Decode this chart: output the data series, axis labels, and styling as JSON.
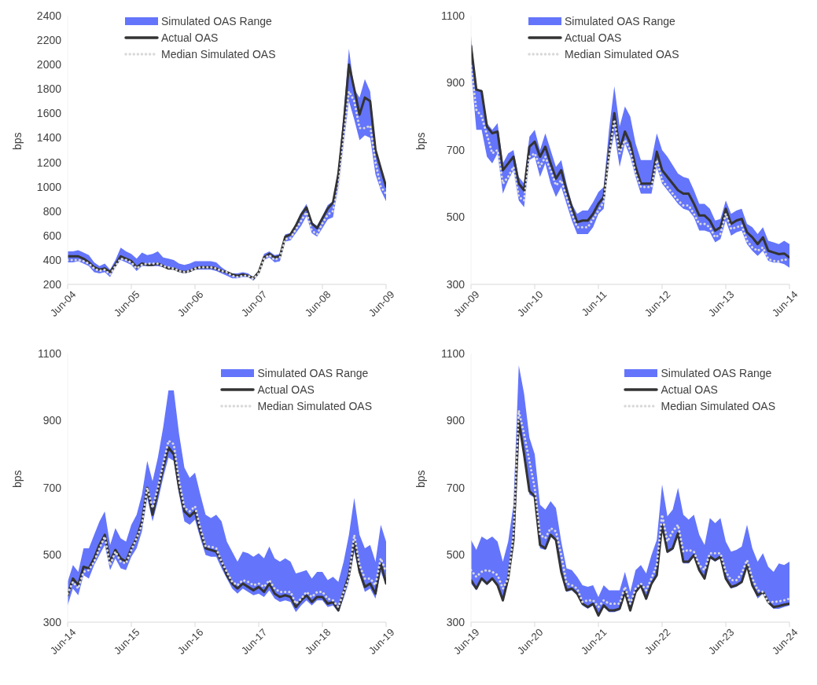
{
  "chart_data": [
    {
      "type": "line",
      "ylabel": "bps",
      "legend": "top",
      "annotations": [
        "Simulated OAS Range"
      ],
      "x": [
        "2004-06",
        "2004-07",
        "2004-08",
        "2004-09",
        "2004-10",
        "2004-11",
        "2004-12",
        "2005-01",
        "2005-02",
        "2005-03",
        "2005-04",
        "2005-05",
        "2005-06",
        "2005-07",
        "2005-08",
        "2005-09",
        "2005-10",
        "2005-11",
        "2005-12",
        "2006-01",
        "2006-02",
        "2006-03",
        "2006-04",
        "2006-05",
        "2006-06",
        "2006-07",
        "2006-08",
        "2006-09",
        "2006-10",
        "2006-11",
        "2006-12",
        "2007-01",
        "2007-02",
        "2007-03",
        "2007-04",
        "2007-05",
        "2007-06",
        "2007-07",
        "2007-08",
        "2007-09",
        "2007-10",
        "2007-11",
        "2007-12",
        "2008-01",
        "2008-02",
        "2008-03",
        "2008-04",
        "2008-05",
        "2008-06",
        "2008-07",
        "2008-08",
        "2008-09",
        "2008-10",
        "2008-11",
        "2008-12",
        "2009-01",
        "2009-02",
        "2009-03",
        "2009-04",
        "2009-05",
        "2009-06"
      ],
      "xlim": [
        "2004-06",
        "2009-06"
      ],
      "xticks": [
        {
          "value": "2004-06",
          "label": "Jun-04"
        },
        {
          "value": "2005-06",
          "label": "Jun-05"
        },
        {
          "value": "2006-06",
          "label": "Jun-06"
        },
        {
          "value": "2007-06",
          "label": "Jun-07"
        },
        {
          "value": "2008-06",
          "label": "Jun-08"
        },
        {
          "value": "2009-06",
          "label": "Jun-09"
        }
      ],
      "ylim": [
        200,
        2400
      ],
      "yticks": [
        200,
        400,
        600,
        800,
        1000,
        1200,
        1400,
        1600,
        1800,
        2000,
        2200,
        2400
      ],
      "series": [
        {
          "name": "Actual OAS",
          "color": "#333333",
          "line_style": "solid",
          "values": [
            430,
            430,
            430,
            410,
            380,
            340,
            320,
            330,
            300,
            360,
            430,
            410,
            390,
            340,
            370,
            360,
            360,
            370,
            350,
            330,
            330,
            310,
            300,
            310,
            330,
            340,
            340,
            340,
            330,
            310,
            300,
            280,
            270,
            280,
            270,
            250,
            300,
            420,
            450,
            420,
            430,
            590,
            610,
            680,
            770,
            830,
            700,
            660,
            740,
            820,
            870,
            1100,
            1500,
            2000,
            1800,
            1590,
            1730,
            1700,
            1300,
            1150,
            1000
          ]
        },
        {
          "name": "Median Simulated OAS",
          "color": "#d9d9d9",
          "line_style": "dotted",
          "values": [
            400,
            400,
            400,
            390,
            370,
            330,
            310,
            320,
            280,
            350,
            410,
            400,
            380,
            330,
            360,
            370,
            370,
            370,
            350,
            340,
            330,
            310,
            300,
            310,
            330,
            340,
            340,
            340,
            330,
            310,
            300,
            270,
            260,
            270,
            270,
            245,
            290,
            410,
            440,
            400,
            420,
            570,
            580,
            650,
            720,
            790,
            640,
            610,
            700,
            770,
            800,
            1000,
            1400,
            1780,
            1700,
            1480,
            1480,
            1500,
            1200,
            1000,
            940
          ],
          "lower": [
            380,
            380,
            390,
            370,
            350,
            300,
            290,
            300,
            260,
            340,
            400,
            380,
            360,
            310,
            350,
            350,
            350,
            350,
            340,
            330,
            320,
            300,
            290,
            300,
            320,
            320,
            320,
            320,
            310,
            290,
            270,
            250,
            250,
            260,
            260,
            230,
            280,
            400,
            420,
            380,
            390,
            550,
            560,
            620,
            680,
            760,
            620,
            590,
            660,
            730,
            750,
            1000,
            1350,
            1700,
            1550,
            1380,
            1420,
            1400,
            1100,
            970,
            880
          ],
          "upper": [
            470,
            470,
            480,
            460,
            440,
            380,
            350,
            370,
            320,
            400,
            500,
            470,
            450,
            410,
            460,
            440,
            450,
            470,
            420,
            410,
            400,
            370,
            360,
            370,
            390,
            390,
            390,
            390,
            380,
            340,
            310,
            290,
            290,
            300,
            290,
            260,
            310,
            450,
            470,
            440,
            450,
            610,
            620,
            700,
            790,
            860,
            710,
            680,
            760,
            850,
            880,
            1150,
            1600,
            2130,
            1800,
            1730,
            1880,
            1780,
            1320,
            1150,
            1020
          ]
        }
      ]
    },
    {
      "type": "line",
      "ylabel": "bps",
      "legend": "top",
      "annotations": [
        "Simulated OAS Range"
      ],
      "x": [
        "2009-06",
        "2009-07",
        "2009-08",
        "2009-09",
        "2009-10",
        "2009-11",
        "2009-12",
        "2010-01",
        "2010-02",
        "2010-03",
        "2010-04",
        "2010-05",
        "2010-06",
        "2010-07",
        "2010-08",
        "2010-09",
        "2010-10",
        "2010-11",
        "2010-12",
        "2011-01",
        "2011-02",
        "2011-03",
        "2011-04",
        "2011-05",
        "2011-06",
        "2011-07",
        "2011-08",
        "2011-09",
        "2011-10",
        "2011-11",
        "2011-12",
        "2012-01",
        "2012-02",
        "2012-03",
        "2012-04",
        "2012-05",
        "2012-06",
        "2012-07",
        "2012-08",
        "2012-09",
        "2012-10",
        "2012-11",
        "2012-12",
        "2013-01",
        "2013-02",
        "2013-03",
        "2013-04",
        "2013-05",
        "2013-06",
        "2013-07",
        "2013-08",
        "2013-09",
        "2013-10",
        "2013-11",
        "2013-12",
        "2014-01",
        "2014-02",
        "2014-03",
        "2014-04",
        "2014-05",
        "2014-06"
      ],
      "xlim": [
        "2009-06",
        "2014-06"
      ],
      "xticks": [
        {
          "value": "2009-06",
          "label": "Jun-09"
        },
        {
          "value": "2010-06",
          "label": "Jun-10"
        },
        {
          "value": "2011-06",
          "label": "Jun-11"
        },
        {
          "value": "2012-06",
          "label": "Jun-12"
        },
        {
          "value": "2013-06",
          "label": "Jun-13"
        },
        {
          "value": "2014-06",
          "label": "Jun-14"
        }
      ],
      "ylim": [
        300,
        1100
      ],
      "yticks": [
        300,
        500,
        700,
        900,
        1100
      ],
      "series": [
        {
          "name": "Actual OAS",
          "color": "#333333",
          "line_style": "solid",
          "values": [
            1010,
            880,
            875,
            770,
            750,
            755,
            640,
            660,
            680,
            600,
            580,
            710,
            725,
            680,
            710,
            660,
            615,
            640,
            580,
            530,
            485,
            490,
            490,
            510,
            540,
            560,
            690,
            810,
            700,
            755,
            720,
            650,
            600,
            600,
            600,
            695,
            640,
            620,
            600,
            580,
            570,
            570,
            540,
            505,
            505,
            490,
            460,
            470,
            525,
            480,
            490,
            495,
            455,
            440,
            420,
            440,
            400,
            395,
            390,
            392,
            380
          ]
        },
        {
          "name": "Median Simulated OAS",
          "color": "#d9d9d9",
          "line_style": "dotted",
          "values": [
            950,
            820,
            800,
            745,
            690,
            700,
            600,
            620,
            650,
            560,
            550,
            680,
            690,
            650,
            680,
            640,
            595,
            610,
            560,
            510,
            470,
            470,
            470,
            495,
            520,
            545,
            680,
            790,
            690,
            730,
            700,
            630,
            590,
            590,
            590,
            670,
            610,
            590,
            570,
            550,
            535,
            535,
            510,
            480,
            480,
            470,
            440,
            450,
            510,
            465,
            470,
            475,
            430,
            410,
            400,
            410,
            375,
            370,
            368,
            375,
            370
          ],
          "lower": [
            940,
            760,
            760,
            680,
            660,
            690,
            570,
            610,
            640,
            550,
            530,
            670,
            680,
            620,
            660,
            600,
            560,
            590,
            540,
            490,
            450,
            450,
            450,
            470,
            510,
            525,
            670,
            750,
            650,
            720,
            680,
            620,
            570,
            570,
            570,
            650,
            600,
            580,
            560,
            540,
            525,
            520,
            500,
            460,
            460,
            455,
            425,
            435,
            490,
            445,
            455,
            460,
            420,
            400,
            385,
            400,
            370,
            365,
            365,
            360,
            350
          ],
          "upper": [
            1040,
            880,
            880,
            780,
            760,
            780,
            660,
            690,
            700,
            620,
            600,
            740,
            760,
            700,
            750,
            700,
            650,
            670,
            600,
            540,
            510,
            520,
            520,
            545,
            575,
            590,
            760,
            890,
            770,
            830,
            800,
            720,
            670,
            670,
            670,
            750,
            700,
            680,
            655,
            630,
            620,
            615,
            580,
            540,
            540,
            525,
            490,
            495,
            550,
            510,
            520,
            525,
            480,
            470,
            450,
            470,
            430,
            425,
            420,
            430,
            420
          ]
        }
      ]
    },
    {
      "type": "line",
      "ylabel": "bps",
      "legend": "top right",
      "annotations": [
        "Simulated OAS Range"
      ],
      "x": [
        "2014-06",
        "2014-07",
        "2014-08",
        "2014-09",
        "2014-10",
        "2014-11",
        "2014-12",
        "2015-01",
        "2015-02",
        "2015-03",
        "2015-04",
        "2015-05",
        "2015-06",
        "2015-07",
        "2015-08",
        "2015-09",
        "2015-10",
        "2015-11",
        "2015-12",
        "2016-01",
        "2016-02",
        "2016-03",
        "2016-04",
        "2016-05",
        "2016-06",
        "2016-07",
        "2016-08",
        "2016-09",
        "2016-10",
        "2016-11",
        "2016-12",
        "2017-01",
        "2017-02",
        "2017-03",
        "2017-04",
        "2017-05",
        "2017-06",
        "2017-07",
        "2017-08",
        "2017-09",
        "2017-10",
        "2017-11",
        "2017-12",
        "2018-01",
        "2018-02",
        "2018-03",
        "2018-04",
        "2018-05",
        "2018-06",
        "2018-07",
        "2018-08",
        "2018-09",
        "2018-10",
        "2018-11",
        "2018-12",
        "2019-01",
        "2019-02",
        "2019-03",
        "2019-04",
        "2019-05",
        "2019-06"
      ],
      "xlim": [
        "2014-06",
        "2019-06"
      ],
      "xticks": [
        {
          "value": "2014-06",
          "label": "Jun-14"
        },
        {
          "value": "2015-06",
          "label": "Jun-15"
        },
        {
          "value": "2016-06",
          "label": "Jun-16"
        },
        {
          "value": "2017-06",
          "label": "Jun-17"
        },
        {
          "value": "2018-06",
          "label": "Jun-18"
        },
        {
          "value": "2019-06",
          "label": "Jun-19"
        }
      ],
      "ylim": [
        300,
        1100
      ],
      "yticks": [
        300,
        500,
        700,
        900,
        1100
      ],
      "series": [
        {
          "name": "Actual OAS",
          "color": "#333333",
          "line_style": "solid",
          "values": [
            380,
            430,
            410,
            465,
            460,
            490,
            530,
            560,
            480,
            515,
            490,
            480,
            520,
            550,
            600,
            700,
            620,
            690,
            760,
            820,
            800,
            700,
            630,
            615,
            630,
            570,
            520,
            515,
            510,
            480,
            440,
            415,
            400,
            415,
            405,
            395,
            405,
            390,
            415,
            385,
            375,
            380,
            375,
            345,
            365,
            380,
            360,
            375,
            375,
            355,
            360,
            335,
            390,
            440,
            540,
            450,
            405,
            415,
            385,
            475,
            415
          ]
        },
        {
          "name": "Median Simulated OAS",
          "color": "#d9d9d9",
          "line_style": "dotted",
          "values": [
            385,
            420,
            400,
            450,
            455,
            480,
            520,
            555,
            470,
            510,
            480,
            475,
            515,
            550,
            590,
            700,
            640,
            700,
            770,
            840,
            830,
            720,
            640,
            630,
            645,
            580,
            525,
            525,
            520,
            480,
            450,
            420,
            410,
            425,
            420,
            410,
            415,
            405,
            425,
            400,
            390,
            390,
            390,
            355,
            370,
            390,
            375,
            390,
            390,
            370,
            365,
            345,
            390,
            430,
            560,
            470,
            430,
            430,
            410,
            490,
            450
          ],
          "lower": [
            350,
            400,
            380,
            440,
            430,
            470,
            500,
            530,
            455,
            490,
            460,
            455,
            495,
            520,
            570,
            670,
            600,
            660,
            730,
            790,
            780,
            680,
            600,
            590,
            605,
            550,
            500,
            495,
            495,
            460,
            430,
            400,
            385,
            400,
            390,
            380,
            385,
            375,
            395,
            370,
            360,
            365,
            360,
            330,
            350,
            365,
            350,
            365,
            365,
            345,
            350,
            330,
            370,
            420,
            510,
            440,
            390,
            400,
            370,
            450,
            410
          ],
          "upper": [
            420,
            470,
            450,
            520,
            520,
            560,
            600,
            630,
            530,
            580,
            550,
            540,
            590,
            620,
            680,
            780,
            720,
            790,
            880,
            990,
            990,
            860,
            760,
            730,
            745,
            680,
            620,
            610,
            620,
            600,
            540,
            510,
            480,
            510,
            505,
            495,
            505,
            490,
            525,
            490,
            480,
            490,
            480,
            445,
            450,
            455,
            430,
            450,
            450,
            425,
            435,
            420,
            480,
            560,
            670,
            560,
            520,
            530,
            480,
            590,
            540
          ]
        }
      ]
    },
    {
      "type": "line",
      "ylabel": "bps",
      "legend": "top right",
      "annotations": [
        "Simulated OAS Range"
      ],
      "x": [
        "2019-06",
        "2019-07",
        "2019-08",
        "2019-09",
        "2019-10",
        "2019-11",
        "2019-12",
        "2020-01",
        "2020-02",
        "2020-03",
        "2020-04",
        "2020-05",
        "2020-06",
        "2020-07",
        "2020-08",
        "2020-09",
        "2020-10",
        "2020-11",
        "2020-12",
        "2021-01",
        "2021-02",
        "2021-03",
        "2021-04",
        "2021-05",
        "2021-06",
        "2021-07",
        "2021-08",
        "2021-09",
        "2021-10",
        "2021-11",
        "2021-12",
        "2022-01",
        "2022-02",
        "2022-03",
        "2022-04",
        "2022-05",
        "2022-06",
        "2022-07",
        "2022-08",
        "2022-09",
        "2022-10",
        "2022-11",
        "2022-12",
        "2023-01",
        "2023-02",
        "2023-03",
        "2023-04",
        "2023-05",
        "2023-06",
        "2023-07",
        "2023-08",
        "2023-09",
        "2023-10",
        "2023-11",
        "2023-12",
        "2024-01",
        "2024-02",
        "2024-03",
        "2024-04",
        "2024-05",
        "2024-06"
      ],
      "xlim": [
        "2019-06",
        "2024-06"
      ],
      "xticks": [
        {
          "value": "2019-06",
          "label": "Jun-19"
        },
        {
          "value": "2020-06",
          "label": "Jun-20"
        },
        {
          "value": "2021-06",
          "label": "Jun-21"
        },
        {
          "value": "2022-06",
          "label": "Jun-22"
        },
        {
          "value": "2023-06",
          "label": "Jun-23"
        },
        {
          "value": "2024-06",
          "label": "Jun-24"
        }
      ],
      "ylim": [
        300,
        1100
      ],
      "yticks": [
        300,
        500,
        700,
        900,
        1100
      ],
      "series": [
        {
          "name": "Actual OAS",
          "color": "#333333",
          "line_style": "solid",
          "values": [
            425,
            400,
            430,
            415,
            430,
            410,
            365,
            430,
            545,
            900,
            800,
            690,
            675,
            530,
            520,
            560,
            545,
            450,
            395,
            400,
            385,
            355,
            345,
            355,
            320,
            350,
            335,
            335,
            340,
            390,
            335,
            390,
            410,
            370,
            415,
            440,
            590,
            510,
            520,
            565,
            480,
            480,
            500,
            455,
            430,
            495,
            485,
            495,
            430,
            405,
            410,
            420,
            470,
            410,
            380,
            390,
            360,
            345,
            348,
            352,
            355
          ]
        },
        {
          "name": "Median Simulated OAS",
          "color": "#d9d9d9",
          "line_style": "dotted",
          "values": [
            455,
            435,
            450,
            455,
            450,
            440,
            400,
            430,
            560,
            930,
            860,
            780,
            700,
            560,
            550,
            580,
            570,
            500,
            415,
            410,
            400,
            360,
            365,
            365,
            345,
            365,
            355,
            355,
            355,
            405,
            355,
            400,
            415,
            395,
            430,
            470,
            620,
            540,
            570,
            590,
            510,
            515,
            510,
            470,
            455,
            505,
            505,
            505,
            450,
            425,
            425,
            445,
            485,
            430,
            395,
            390,
            360,
            360,
            362,
            365,
            370
          ],
          "lower": [
            415,
            395,
            425,
            410,
            425,
            405,
            360,
            425,
            540,
            890,
            790,
            680,
            670,
            520,
            515,
            555,
            540,
            445,
            390,
            395,
            380,
            350,
            340,
            350,
            315,
            345,
            330,
            330,
            335,
            385,
            330,
            385,
            405,
            365,
            410,
            435,
            585,
            505,
            515,
            560,
            475,
            475,
            495,
            450,
            425,
            490,
            480,
            490,
            425,
            400,
            405,
            415,
            465,
            405,
            370,
            385,
            355,
            340,
            340,
            345,
            350
          ],
          "upper": [
            545,
            515,
            555,
            545,
            555,
            540,
            480,
            540,
            650,
            1065,
            980,
            850,
            800,
            650,
            635,
            660,
            640,
            540,
            460,
            455,
            435,
            410,
            405,
            410,
            375,
            410,
            395,
            395,
            395,
            450,
            390,
            455,
            470,
            445,
            500,
            545,
            710,
            615,
            635,
            700,
            620,
            605,
            620,
            560,
            530,
            610,
            595,
            610,
            540,
            510,
            515,
            525,
            590,
            520,
            480,
            505,
            465,
            450,
            475,
            470,
            480
          ]
        }
      ]
    }
  ]
}
